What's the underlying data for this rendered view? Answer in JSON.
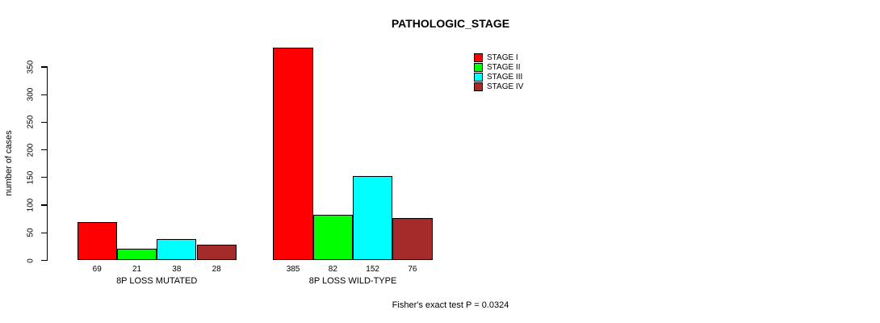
{
  "chart_data": {
    "type": "bar",
    "title": "PATHOLOGIC_STAGE",
    "categories": [
      "8P LOSS MUTATED",
      "8P LOSS WILD-TYPE"
    ],
    "series": [
      {
        "name": "STAGE I",
        "color": "#ff0000",
        "values": [
          69,
          385
        ]
      },
      {
        "name": "STAGE II",
        "color": "#00ff00",
        "values": [
          21,
          82
        ]
      },
      {
        "name": "STAGE III",
        "color": "#00ffff",
        "values": [
          38,
          152
        ]
      },
      {
        "name": "STAGE IV",
        "color": "#a52a2a",
        "values": [
          28,
          76
        ]
      }
    ],
    "bar_value_labels": [
      [
        "69",
        "21",
        "38",
        "28"
      ],
      [
        "385",
        "82",
        "152",
        "76"
      ]
    ],
    "ylabel": "number of cases",
    "ylim": [
      0,
      350
    ],
    "yticks": [
      0,
      50,
      100,
      150,
      200,
      250,
      300,
      350
    ],
    "legend_position": "top-right",
    "grid": false,
    "annotation": "Fisher's exact test P = 0.0324"
  }
}
